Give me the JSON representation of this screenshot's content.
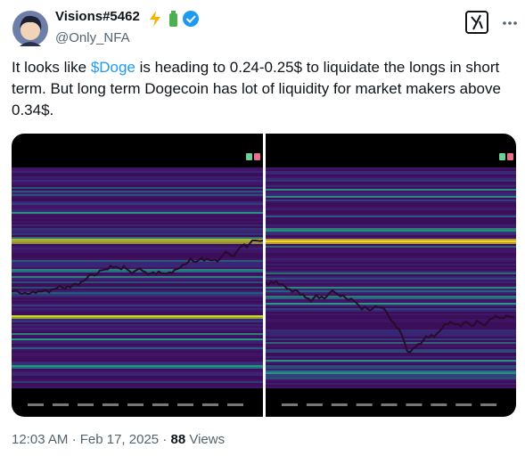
{
  "author": {
    "name": "Visions#5462",
    "handle": "@Only_NFA"
  },
  "post": {
    "text_before": "It looks like ",
    "cashtag": "$Doge",
    "text_after": " is heading to 0.24-0.25$ to liquidate the longs in short term. But long term Dogecoin has lot of liquidity for market makers above 0.34$."
  },
  "meta": {
    "time": "12:03 AM",
    "separator": "·",
    "date": "Feb 17, 2025",
    "views": "88",
    "views_label": "Views"
  }
}
